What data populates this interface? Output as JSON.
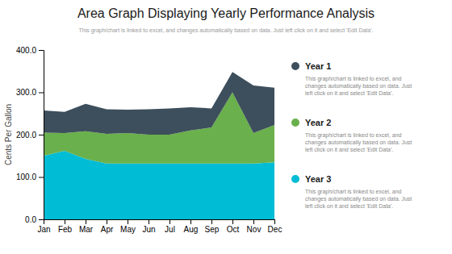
{
  "chart_data": {
    "type": "area",
    "stacked": true,
    "grid": false,
    "title": "Area Graph Displaying  Yearly  Performance  Analysis",
    "subtitle": "This graph/chart is linked to excel, and changes automatically based on data. Just left click on it and select 'Edit Data'.",
    "y_label": "Cents Per Gallon",
    "categories": [
      "Jan",
      "Feb",
      "Mar",
      "Apr",
      "May",
      "Jun",
      "Jul",
      "Aug",
      "Sep",
      "Oct",
      "Nov",
      "Dec"
    ],
    "series": [
      {
        "name": "Year 3",
        "color": "#00bcd4",
        "values": [
          150,
          162,
          143,
          132,
          132,
          132,
          132,
          132,
          132,
          132,
          132,
          135
        ]
      },
      {
        "name": "Year 2",
        "color": "#6ab04c",
        "values": [
          55,
          42,
          65,
          70,
          72,
          68,
          68,
          78,
          85,
          168,
          72,
          88
        ]
      },
      {
        "name": "Year 1",
        "color": "#3d4f5c",
        "values": [
          52,
          50,
          65,
          58,
          55,
          60,
          62,
          55,
          45,
          48,
          112,
          88
        ]
      }
    ],
    "legend_note": [
      "This graph/chart is linked to excel, and",
      "changes automatically based on data. Just",
      "left click on it and select 'Edit Data'."
    ],
    "ylim": [
      0,
      400
    ],
    "yticks": [
      {
        "value": 0,
        "label": "0.0"
      },
      {
        "value": 100,
        "label": "100.0"
      },
      {
        "value": 200,
        "label": "200.0"
      },
      {
        "value": 300,
        "label": "300.0"
      },
      {
        "value": 400,
        "label": "400.0"
      }
    ]
  }
}
